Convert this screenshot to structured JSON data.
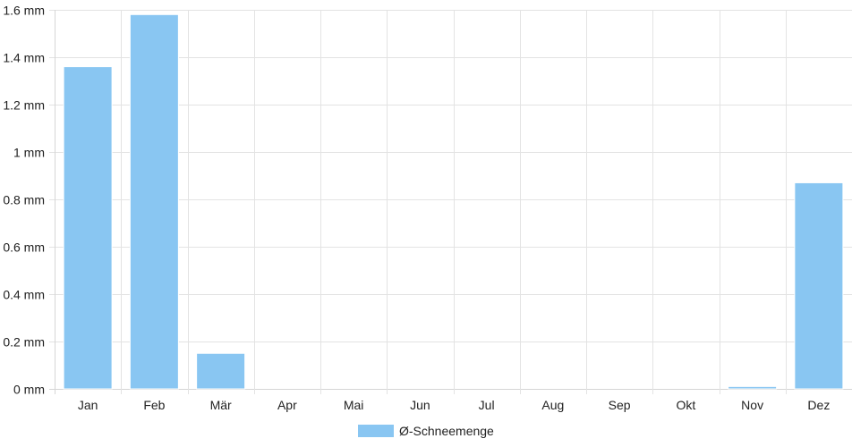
{
  "chart_data": {
    "type": "bar",
    "categories": [
      "Jan",
      "Feb",
      "Mär",
      "Apr",
      "Mai",
      "Jun",
      "Jul",
      "Aug",
      "Sep",
      "Okt",
      "Nov",
      "Dez"
    ],
    "series": [
      {
        "name": "Ø-Schneemenge",
        "values": [
          1.36,
          1.58,
          0.15,
          0,
          0,
          0,
          0,
          0,
          0,
          0,
          0.01,
          0.87
        ],
        "color": "#89c6f2"
      }
    ],
    "y_ticks": [
      0,
      0.2,
      0.4,
      0.6,
      0.8,
      1,
      1.2,
      1.4,
      1.6
    ],
    "y_tick_labels": [
      "0 mm",
      "0.2 mm",
      "0.4 mm",
      "0.6 mm",
      "0.8 mm",
      "1 mm",
      "1.2 mm",
      "1.4 mm",
      "1.6 mm"
    ],
    "ylim": [
      0,
      1.6
    ],
    "grid": true,
    "legend_position": "bottom-center"
  }
}
